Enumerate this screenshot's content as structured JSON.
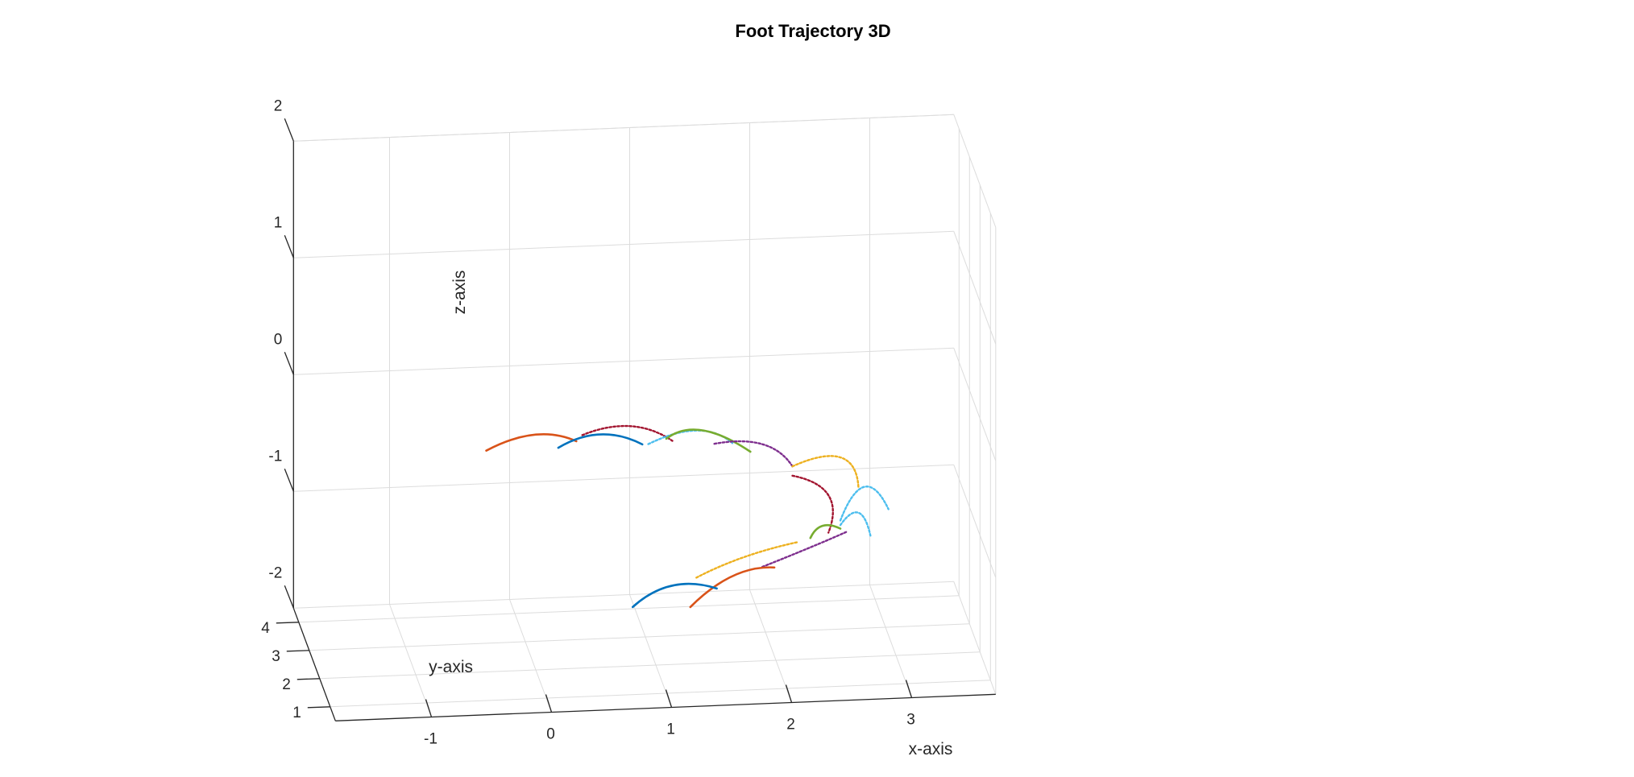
{
  "chart_data": {
    "type": "line3d",
    "title": "Foot Trajectory 3D",
    "xlabel": "x-axis",
    "ylabel": "y-axis",
    "zlabel": "z-axis",
    "xlim": [
      -1.8,
      3.7
    ],
    "ylim": [
      0.5,
      4.5
    ],
    "zlim": [
      -2,
      2
    ],
    "xticks": [
      "-1",
      "0",
      "1",
      "2",
      "3"
    ],
    "yticks": [
      "1",
      "2",
      "3",
      "4"
    ],
    "zticks": [
      "-2",
      "-1",
      "0",
      "1",
      "2"
    ],
    "grid": true,
    "legend": "none",
    "series": [
      {
        "color": "#D95319",
        "style": "solid",
        "points": [
          [
            -0.5,
            1,
            0.14
          ],
          [
            -0.1,
            1,
            0.26
          ],
          [
            0.25,
            1,
            0.19
          ]
        ]
      },
      {
        "color": "#0072BD",
        "style": "solid",
        "points": [
          [
            0.1,
            1,
            0.14
          ],
          [
            0.45,
            1,
            0.24
          ],
          [
            0.8,
            1,
            0.14
          ]
        ]
      },
      {
        "color": "#A2142F",
        "style": "dotted",
        "points": [
          [
            0.3,
            1,
            0.24
          ],
          [
            0.7,
            1,
            0.3
          ],
          [
            1.05,
            1,
            0.16
          ]
        ]
      },
      {
        "color": "#4DBEEE",
        "style": "dotted",
        "points": [
          [
            0.85,
            1,
            0.14
          ],
          [
            1.25,
            1,
            0.24
          ],
          [
            1.55,
            1,
            0.12
          ]
        ]
      },
      {
        "color": "#77AC30",
        "style": "solid",
        "points": [
          [
            1.0,
            1,
            0.18
          ],
          [
            1.3,
            1,
            0.24
          ],
          [
            1.7,
            1,
            0.04
          ]
        ]
      },
      {
        "color": "#7E2F8E",
        "style": "dotted",
        "points": [
          [
            1.4,
            1,
            0.12
          ],
          [
            1.8,
            1,
            0.1
          ],
          [
            2.05,
            1,
            -0.1
          ]
        ]
      },
      {
        "color": "#EDB120",
        "style": "dotted",
        "points": [
          [
            2.05,
            1,
            -0.1
          ],
          [
            2.45,
            1,
            -0.04
          ],
          [
            2.6,
            1,
            -0.3
          ]
        ]
      },
      {
        "color": "#A2142F",
        "style": "dotted",
        "points": [
          [
            2.05,
            1,
            -0.18
          ],
          [
            2.35,
            1,
            -0.36
          ],
          [
            2.35,
            1,
            -0.68
          ]
        ]
      },
      {
        "color": "#4DBEEE",
        "style": "dotted",
        "points": [
          [
            2.45,
            1,
            -0.58
          ],
          [
            2.65,
            1,
            -0.3
          ],
          [
            2.85,
            1,
            -0.5
          ]
        ]
      },
      {
        "color": "#77AC30",
        "style": "solid",
        "points": [
          [
            2.2,
            1,
            -0.72
          ],
          [
            2.3,
            1,
            -0.62
          ],
          [
            2.45,
            1,
            -0.65
          ]
        ]
      },
      {
        "color": "#4DBEEE",
        "style": "dotted",
        "points": [
          [
            2.45,
            1,
            -0.62
          ],
          [
            2.6,
            1,
            -0.52
          ],
          [
            2.7,
            1,
            -0.72
          ]
        ]
      },
      {
        "color": "#7E2F8E",
        "style": "dotted",
        "points": [
          [
            1.8,
            1,
            -0.95
          ],
          [
            2.2,
            1,
            -0.8
          ],
          [
            2.5,
            1,
            -0.68
          ]
        ]
      },
      {
        "color": "#EDB120",
        "style": "dotted",
        "points": [
          [
            1.25,
            1,
            -1.02
          ],
          [
            1.65,
            1,
            -0.86
          ],
          [
            2.1,
            1,
            -0.75
          ]
        ]
      },
      {
        "color": "#D95319",
        "style": "solid",
        "points": [
          [
            1.2,
            1,
            -1.27
          ],
          [
            1.55,
            1,
            -1.02
          ],
          [
            1.9,
            1,
            -0.96
          ]
        ]
      },
      {
        "color": "#0072BD",
        "style": "solid",
        "points": [
          [
            0.72,
            1,
            -1.25
          ],
          [
            1.05,
            1,
            -1.08
          ],
          [
            1.42,
            1,
            -1.12
          ]
        ]
      }
    ]
  }
}
